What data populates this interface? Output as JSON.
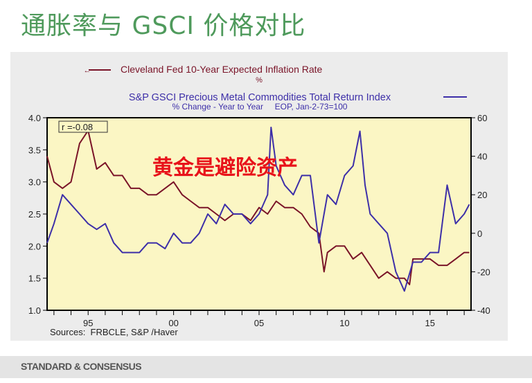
{
  "page": {
    "title": "通胀率与 GSCI 价格对比",
    "footer": "STANDARD & CONSENSUS"
  },
  "chart_data": {
    "type": "line",
    "series": [
      {
        "name": "Cleveland Fed 10-Year Expected Inflation Rate",
        "unit": "%",
        "axis": "left",
        "color": "#7a1428",
        "x": [
          1992.6,
          1993,
          1993.5,
          1994,
          1994.5,
          1995,
          1995.5,
          1996,
          1996.5,
          1997,
          1997.5,
          1998,
          1998.5,
          1999,
          1999.5,
          2000,
          2000.5,
          2001,
          2001.5,
          2002,
          2002.5,
          2003,
          2003.5,
          2004,
          2004.5,
          2005,
          2005.5,
          2006,
          2006.5,
          2007,
          2007.5,
          2008,
          2008.5,
          2008.8,
          2009,
          2009.5,
          2010,
          2010.5,
          2011,
          2011.5,
          2012,
          2012.5,
          2013,
          2013.5,
          2013.8,
          2014,
          2014.5,
          2015,
          2015.5,
          2016,
          2016.5,
          2017,
          2017.3
        ],
        "y": [
          3.4,
          3.0,
          2.9,
          3.0,
          3.6,
          3.8,
          3.2,
          3.3,
          3.1,
          3.1,
          2.9,
          2.9,
          2.8,
          2.8,
          2.9,
          3.0,
          2.8,
          2.7,
          2.6,
          2.6,
          2.5,
          2.4,
          2.5,
          2.5,
          2.4,
          2.6,
          2.5,
          2.7,
          2.6,
          2.6,
          2.5,
          2.3,
          2.2,
          1.6,
          1.9,
          2.0,
          2.0,
          1.8,
          1.9,
          1.7,
          1.5,
          1.6,
          1.5,
          1.5,
          1.4,
          1.8,
          1.8,
          1.8,
          1.7,
          1.7,
          1.8,
          1.9,
          1.9
        ]
      },
      {
        "name": "S&P GSCI Precious Metal Commodities Total Return Index",
        "unit": "% Change - Year to Year",
        "axis": "right",
        "color": "#3d2fa8",
        "x": [
          1992.6,
          1993,
          1993.5,
          1994,
          1994.5,
          1995,
          1995.5,
          1996,
          1996.5,
          1997,
          1997.5,
          1998,
          1998.5,
          1999,
          1999.5,
          2000,
          2000.5,
          2001,
          2001.5,
          2002,
          2002.5,
          2003,
          2003.5,
          2004,
          2004.5,
          2005,
          2005.5,
          2005.7,
          2006,
          2006.5,
          2007,
          2007.5,
          2008,
          2008.5,
          2009,
          2009.5,
          2010,
          2010.5,
          2010.9,
          2011.2,
          2011.5,
          2012,
          2012.5,
          2013,
          2013.5,
          2014,
          2014.5,
          2015,
          2015.5,
          2016,
          2016.5,
          2017,
          2017.3
        ],
        "y": [
          -5,
          5,
          20,
          15,
          10,
          5,
          2,
          5,
          -5,
          -10,
          -10,
          -10,
          -5,
          -5,
          -8,
          0,
          -5,
          -5,
          0,
          10,
          5,
          15,
          10,
          10,
          5,
          10,
          20,
          55,
          35,
          25,
          20,
          30,
          30,
          -5,
          20,
          15,
          30,
          35,
          53,
          25,
          10,
          5,
          0,
          -20,
          -30,
          -15,
          -15,
          -10,
          -10,
          25,
          5,
          10,
          15
        ]
      }
    ],
    "title": "Cleveland Fed 10-Year Expected Inflation Rate / S&P GSCI Precious Metal Commodities Total Return Index",
    "legend": {
      "left_series": "Cleveland Fed 10-Year Expected Inflation Rate",
      "left_unit": "%",
      "right_series": "S&P GSCI Precious Metal Commodities Total Return Index",
      "right_unit": "% Change - Year to Year     EOP, Jan-2-73=100"
    },
    "xlim": [
      1992.6,
      2017.4
    ],
    "ylim_left": [
      1.0,
      4.0
    ],
    "ylim_right": [
      -40,
      60
    ],
    "x_ticks": [
      {
        "v": 1995,
        "label": "95"
      },
      {
        "v": 2000,
        "label": "00"
      },
      {
        "v": 2005,
        "label": "05"
      },
      {
        "v": 2010,
        "label": "10"
      },
      {
        "v": 2015,
        "label": "15"
      }
    ],
    "y_left_ticks": [
      "1.0",
      "1.5",
      "2.0",
      "2.5",
      "3.0",
      "3.5",
      "4.0"
    ],
    "y_right_ticks": [
      "-40",
      "-20",
      "0",
      "20",
      "40",
      "60"
    ],
    "annotation": "r =-0.08",
    "overlay_text": "黄金是避险资产",
    "source": "Sources:  FRBCLE, S&P /Haver"
  }
}
